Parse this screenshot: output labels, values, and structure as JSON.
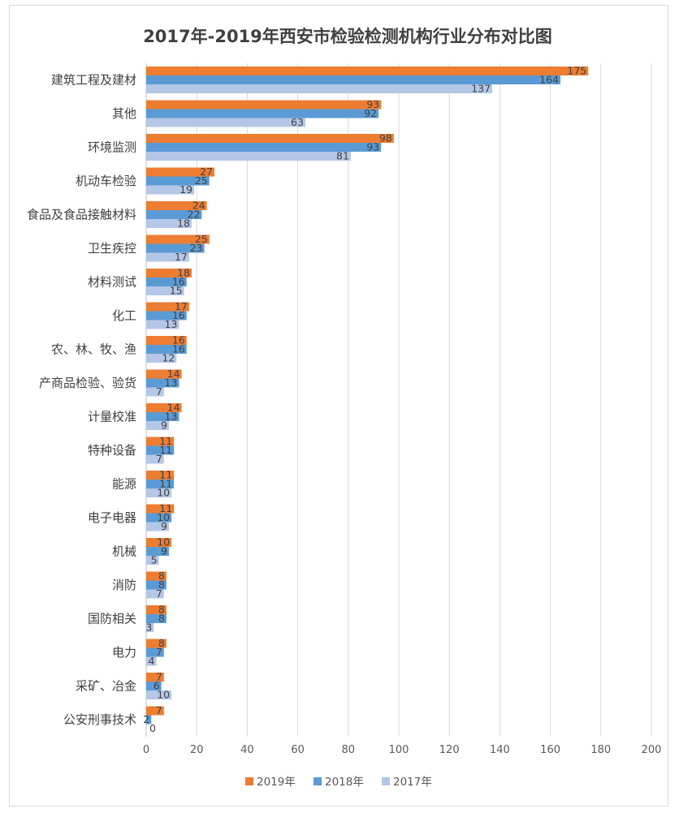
{
  "chart_data": {
    "type": "bar",
    "orientation": "horizontal",
    "title": "2017年-2019年西安市检验检测机构行业分布对比图",
    "categories": [
      "建筑工程及建材",
      "其他",
      "环境监测",
      "机动车检验",
      "食品及食品接触材料",
      "卫生疾控",
      "材料测试",
      "化工",
      "农、林、牧、渔",
      "产商品检验、验货",
      "计量校准",
      "特种设备",
      "能源",
      "电子电器",
      "机械",
      "消防",
      "国防相关",
      "电力",
      "采矿、冶金",
      "公安刑事技术"
    ],
    "series": [
      {
        "name": "2019年",
        "color": "#ED7D31",
        "values": [
          175,
          93,
          98,
          27,
          24,
          25,
          18,
          17,
          16,
          14,
          14,
          11,
          11,
          11,
          10,
          8,
          8,
          8,
          7,
          7
        ]
      },
      {
        "name": "2018年",
        "color": "#5B9BD5",
        "values": [
          164,
          92,
          93,
          25,
          22,
          23,
          16,
          16,
          16,
          13,
          13,
          11,
          11,
          10,
          9,
          8,
          8,
          7,
          6,
          2
        ]
      },
      {
        "name": "2017年",
        "color": "#B4C7E7",
        "values": [
          137,
          63,
          81,
          19,
          18,
          17,
          15,
          13,
          12,
          7,
          9,
          7,
          10,
          9,
          5,
          7,
          3,
          4,
          10,
          0
        ]
      }
    ],
    "xlim": [
      0,
      200
    ],
    "xticks": [
      "0",
      "20",
      "40",
      "60",
      "80",
      "100",
      "120",
      "140",
      "160",
      "180",
      "200"
    ],
    "grid": true,
    "legend_position": "bottom"
  }
}
